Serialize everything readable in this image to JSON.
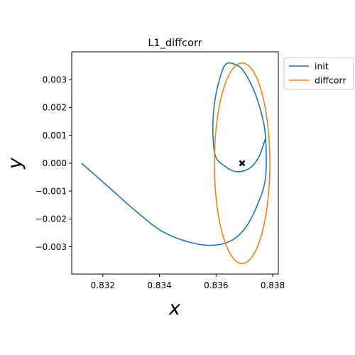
{
  "chart_data": {
    "type": "line",
    "title": "L1_diffcorr",
    "xlabel": "x",
    "ylabel": "y",
    "xlim": [
      0.8309,
      0.8382
    ],
    "ylim": [
      -0.00398,
      0.004
    ],
    "x_ticks": [
      0.832,
      0.834,
      0.836,
      0.838
    ],
    "x_tick_labels": [
      "0.832",
      "0.834",
      "0.836",
      "0.838"
    ],
    "y_ticks": [
      0.003,
      0.002,
      0.001,
      0.0,
      -0.001,
      -0.002,
      -0.003
    ],
    "y_tick_labels": [
      "0.003",
      "0.002",
      "0.001",
      "0.000",
      "−0.001",
      "−0.002",
      "−0.003"
    ],
    "grid": false,
    "legend_placement": "outside-top-right",
    "series": [
      {
        "name": "init",
        "color": "#1f77b4",
        "x": [
          0.83125,
          0.8322,
          0.8332,
          0.8341,
          0.835,
          0.8358,
          0.8365,
          0.83705,
          0.8375,
          0.83775,
          0.83775,
          0.8376,
          0.8373,
          0.8369,
          0.8365,
          0.8363,
          0.83615,
          0.836,
          0.8359,
          0.8359,
          0.836,
          0.8363,
          0.8367,
          0.83715,
          0.8375,
          0.83775
        ],
        "y": [
          0.0,
          -0.00085,
          -0.00175,
          -0.00245,
          -0.00282,
          -0.00295,
          -0.0028,
          -0.0023,
          -0.0014,
          -0.0005,
          0.0009,
          0.0018,
          0.0027,
          0.0034,
          0.0036,
          0.0035,
          0.0031,
          0.0025,
          0.0017,
          0.0008,
          0.0002,
          -0.0001,
          -0.0003,
          -0.0002,
          0.0002,
          0.0009
        ]
      },
      {
        "name": "diffcorr",
        "color": "#ff7f0e",
        "center": [
          0.83692,
          0.0
        ],
        "semi_axes": [
          0.00098,
          0.0036
        ]
      }
    ],
    "marker": {
      "x": 0.83692,
      "y": 0.0,
      "symbol": "X",
      "color": "#000000"
    }
  }
}
